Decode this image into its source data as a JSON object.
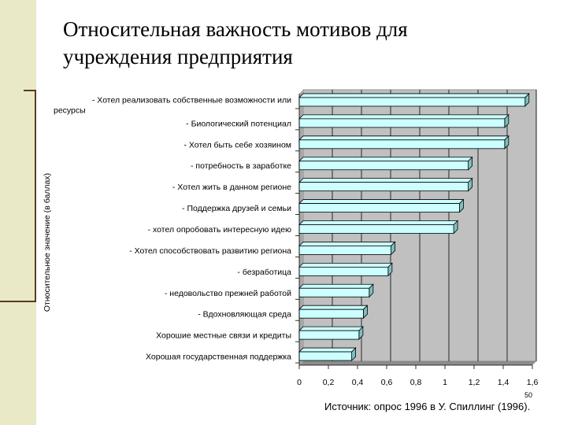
{
  "slide": {
    "title_line1": "Относительная важность мотивов для",
    "title_line2": "учреждения предприятия",
    "source": "Источник: опрос 1996 в У. Спиллинг (1996).",
    "page_number": "50"
  },
  "colors": {
    "bar_fill": "#ccffff",
    "plot_bg": "#c0c0c0",
    "side_band": "#e9e9c8",
    "accent": "#5a3b1e"
  },
  "chart_data": {
    "type": "bar",
    "orientation": "horizontal",
    "ylabel": "Относительное значение (в баллах)",
    "xlim": [
      0,
      1.6
    ],
    "xticks": [
      "0",
      "0,2",
      "0,4",
      "0,6",
      "0,8",
      "1",
      "1,2",
      "1,4",
      "1,6"
    ],
    "grid": true,
    "categories": [
      [
        "- Хотел реализовать собственные возможности или",
        "ресурсы"
      ],
      [
        "- Биологический потенциал"
      ],
      [
        "- Хотел быть себе хозяином"
      ],
      [
        "- потребность в заработке"
      ],
      [
        "- Хотел жить в данном регионе"
      ],
      [
        "- Поддержка друзей и семьи"
      ],
      [
        "- хотел опробовать интересную идею"
      ],
      [
        "- Хотел способствовать развитию региона"
      ],
      [
        "- безработица"
      ],
      [
        "- недовольство прежней работой"
      ],
      [
        "- Вдохновляющая среда"
      ],
      [
        "Хорошие местные связи и кредиты"
      ],
      [
        "Хорошая государственная поддержка"
      ]
    ],
    "values": [
      1.55,
      1.41,
      1.41,
      1.16,
      1.16,
      1.1,
      1.06,
      0.63,
      0.61,
      0.48,
      0.44,
      0.41,
      0.36
    ]
  }
}
